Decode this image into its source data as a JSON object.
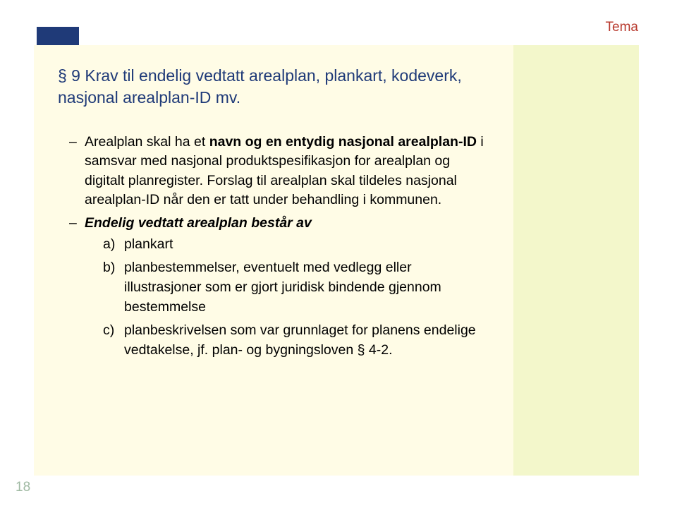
{
  "header": {
    "bar_color": "#1f3a78",
    "tema_label": "Tema",
    "tema_color": "#b83a2e"
  },
  "content": {
    "bg_color": "#fffce6",
    "title_color": "#1f3a78",
    "title": "§ 9 Krav til endelig vedtatt arealplan, plankart, kodeverk, nasjonal arealplan-ID mv.",
    "bullet1_part1": "Arealplan skal ha et ",
    "bullet1_bold": "navn og en entydig nasjonal arealplan-ID",
    "bullet1_part2": " i samsvar med nasjonal produktspesifikasjon for arealplan og digitalt planregister. Forslag til arealplan skal tildeles nasjonal arealplan-ID når den er tatt under behandling i kommunen.",
    "bullet2_bold": "Endelig vedtatt arealplan består av",
    "sub_a_letter": "a)",
    "sub_a_text": "plankart",
    "sub_b_letter": "b)",
    "sub_b_text": "planbestemmelser, eventuelt med vedlegg eller illustrasjoner som er gjort juridisk bindende gjennom bestemmelse",
    "sub_c_letter": "c)",
    "sub_c_text": "planbeskrivelsen som var grunnlaget for planens endelige vedtakelse, jf. plan- og bygningsloven § 4-2."
  },
  "sidebar": {
    "bg_color": "#f3f7cb"
  },
  "page_number": "18",
  "page_number_color": "#9fb9a2"
}
